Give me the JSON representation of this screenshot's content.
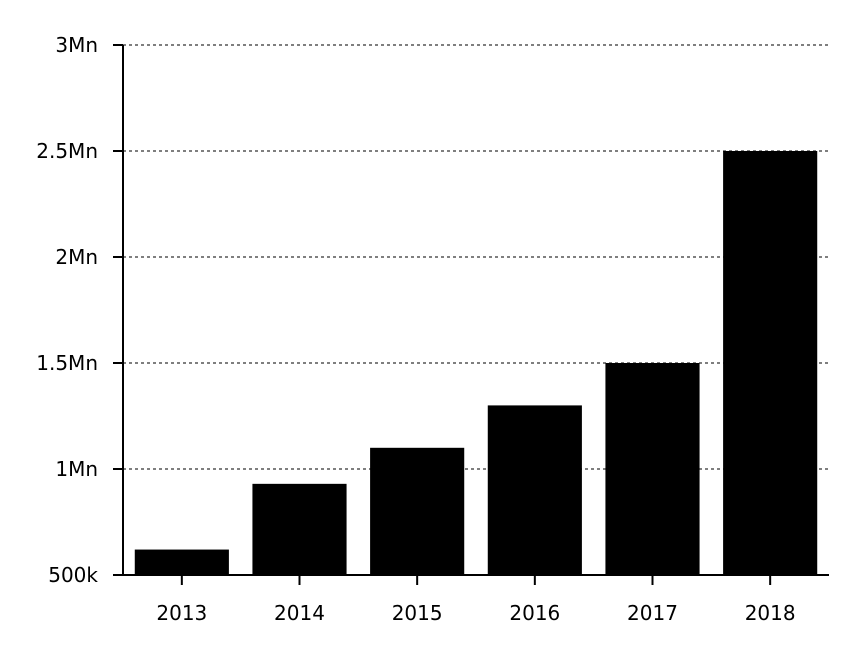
{
  "chart_data": {
    "type": "bar",
    "categories": [
      "2013",
      "2014",
      "2015",
      "2016",
      "2017",
      "2018"
    ],
    "values": [
      620000,
      930000,
      1100000,
      1300000,
      1500000,
      2500000
    ],
    "ylim": [
      500000,
      3000000
    ],
    "yticks": [
      {
        "value": 500000,
        "label": "500k"
      },
      {
        "value": 1000000,
        "label": "1Mn"
      },
      {
        "value": 1500000,
        "label": "1.5Mn"
      },
      {
        "value": 2000000,
        "label": "2Mn"
      },
      {
        "value": 2500000,
        "label": "2.5Mn"
      },
      {
        "value": 3000000,
        "label": "3Mn"
      }
    ],
    "grid": "horizontal-dotted",
    "bar_color": "#000000"
  }
}
